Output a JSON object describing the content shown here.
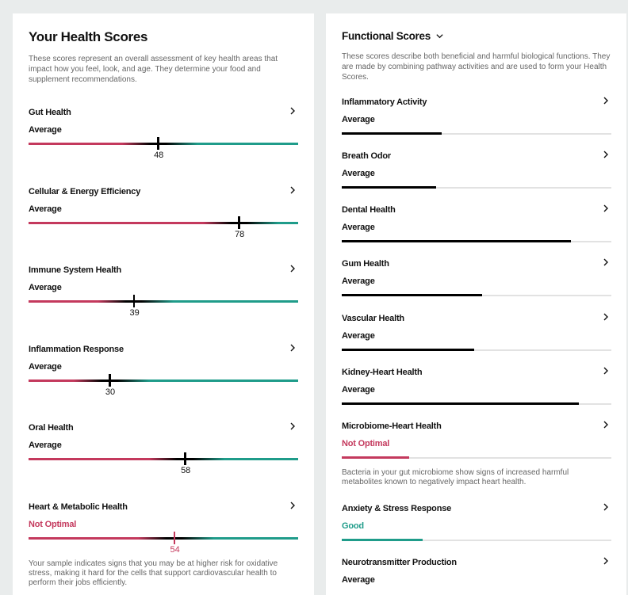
{
  "colors": {
    "background": "#e9ecec",
    "bad": "#c4395d",
    "good": "#1f9c8a",
    "neutral": "#000000",
    "track": "#e2e2e2"
  },
  "health_scores": {
    "title": "Your Health Scores",
    "description": "These scores represent an overall assessment of key health areas that impact how you feel, look, and age. They determine your food and supplement recommendations.",
    "items": [
      {
        "name": "Gut Health",
        "status": "Average",
        "score": "48"
      },
      {
        "name": "Cellular & Energy Efficiency",
        "status": "Average",
        "score": "78"
      },
      {
        "name": "Immune System Health",
        "status": "Average",
        "score": "39"
      },
      {
        "name": "Inflammation Response",
        "status": "Average",
        "score": "30"
      },
      {
        "name": "Oral Health",
        "status": "Average",
        "score": "58"
      },
      {
        "name": "Heart & Metabolic Health",
        "status": "Not Optimal",
        "score": "54",
        "note": "Your sample indicates signs that you may be at higher risk for oxidative stress, making it hard for the cells that support cardiovascular health to perform their jobs efficiently."
      }
    ]
  },
  "functional_scores": {
    "title": "Functional Scores",
    "dropdown_icon": "chevron-down-icon",
    "description": "These scores describe both beneficial and harmful biological functions. They are made by combining pathway activities and are used to form your Health Scores.",
    "items": [
      {
        "name": "Inflammatory Activity",
        "status": "Average",
        "fill_percent": 37
      },
      {
        "name": "Breath Odor",
        "status": "Average",
        "fill_percent": 35
      },
      {
        "name": "Dental Health",
        "status": "Average",
        "fill_percent": 85
      },
      {
        "name": "Gum Health",
        "status": "Average",
        "fill_percent": 52
      },
      {
        "name": "Vascular Health",
        "status": "Average",
        "fill_percent": 49
      },
      {
        "name": "Kidney-Heart Health",
        "status": "Average",
        "fill_percent": 88
      },
      {
        "name": "Microbiome-Heart Health",
        "status": "Not Optimal",
        "fill_percent": 25,
        "note": "Bacteria in your gut microbiome show signs of increased harmful metabolites known to negatively impact heart health."
      },
      {
        "name": "Anxiety & Stress Response",
        "status": "Good",
        "fill_percent": 30
      },
      {
        "name": "Neurotransmitter Production",
        "status": "Average",
        "fill_percent": null
      }
    ]
  },
  "icons": {
    "item_arrow": "chevron-right-icon",
    "title_dropdown": "chevron-down-icon"
  }
}
